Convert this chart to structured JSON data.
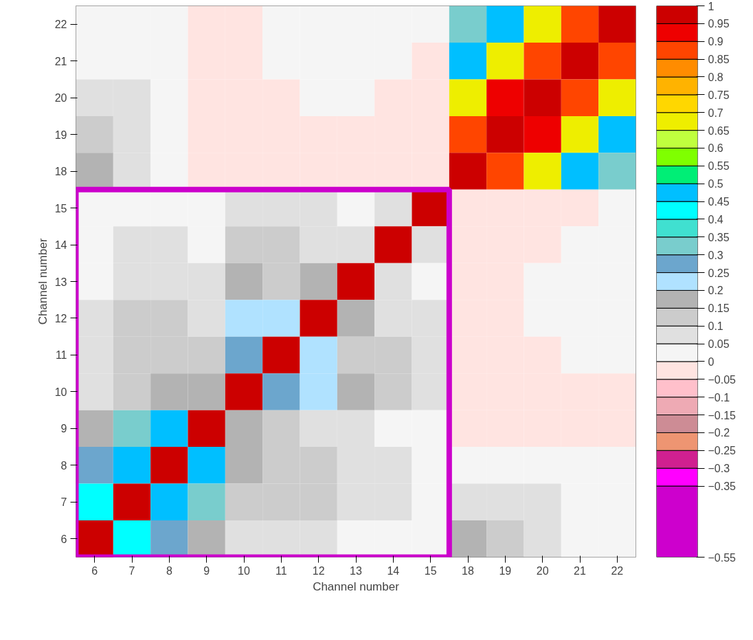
{
  "chart_data": {
    "type": "heatmap",
    "xlabel": "Channel number",
    "ylabel": "Channel number",
    "categories": [
      "6",
      "7",
      "8",
      "9",
      "10",
      "11",
      "12",
      "13",
      "14",
      "15",
      "18",
      "19",
      "20",
      "21",
      "22"
    ],
    "y_categories": [
      "22",
      "21",
      "20",
      "19",
      "18",
      "15",
      "14",
      "13",
      "12",
      "11",
      "10",
      "9",
      "8",
      "7",
      "6"
    ],
    "cells": [
      [
        0.025,
        0.025,
        0.025,
        -0.025,
        -0.025,
        0.025,
        0.025,
        0.025,
        0.025,
        0.025,
        0.325,
        0.475,
        0.675,
        0.875,
        0.975
      ],
      [
        0.025,
        0.025,
        0.025,
        -0.025,
        -0.025,
        0.025,
        0.025,
        0.025,
        0.025,
        -0.025,
        0.475,
        0.675,
        0.875,
        0.975,
        0.875
      ],
      [
        0.075,
        0.075,
        0.025,
        -0.025,
        -0.025,
        -0.025,
        0.025,
        0.025,
        -0.025,
        -0.025,
        0.675,
        0.925,
        0.975,
        0.875,
        0.675
      ],
      [
        0.125,
        0.075,
        0.025,
        -0.025,
        -0.025,
        -0.025,
        -0.025,
        -0.025,
        -0.025,
        -0.025,
        0.875,
        0.975,
        0.925,
        0.675,
        0.475
      ],
      [
        0.175,
        0.075,
        0.025,
        -0.025,
        -0.025,
        -0.025,
        -0.025,
        -0.025,
        -0.025,
        -0.025,
        0.975,
        0.875,
        0.675,
        0.475,
        0.325
      ],
      [
        0.025,
        0.025,
        0.025,
        0.025,
        0.075,
        0.075,
        0.075,
        0.025,
        0.075,
        0.975,
        -0.025,
        -0.025,
        -0.025,
        -0.025,
        0.025
      ],
      [
        0.025,
        0.075,
        0.075,
        0.025,
        0.125,
        0.125,
        0.075,
        0.075,
        0.975,
        0.075,
        -0.025,
        -0.025,
        -0.025,
        0.025,
        0.025
      ],
      [
        0.025,
        0.075,
        0.075,
        0.075,
        0.175,
        0.125,
        0.175,
        0.975,
        0.075,
        0.025,
        -0.025,
        -0.025,
        0.025,
        0.025,
        0.025
      ],
      [
        0.075,
        0.125,
        0.125,
        0.075,
        0.225,
        0.225,
        0.975,
        0.175,
        0.075,
        0.075,
        -0.025,
        -0.025,
        0.025,
        0.025,
        0.025
      ],
      [
        0.075,
        0.125,
        0.125,
        0.125,
        0.275,
        0.975,
        0.225,
        0.125,
        0.125,
        0.075,
        -0.025,
        -0.025,
        -0.025,
        0.025,
        0.025
      ],
      [
        0.075,
        0.125,
        0.175,
        0.175,
        0.975,
        0.275,
        0.225,
        0.175,
        0.125,
        0.075,
        -0.025,
        -0.025,
        -0.025,
        -0.025,
        -0.025
      ],
      [
        0.175,
        0.325,
        0.475,
        0.975,
        0.175,
        0.125,
        0.075,
        0.075,
        0.025,
        0.025,
        -0.025,
        -0.025,
        -0.025,
        -0.025,
        -0.025
      ],
      [
        0.275,
        0.475,
        0.975,
        0.475,
        0.175,
        0.125,
        0.125,
        0.075,
        0.075,
        0.025,
        0.025,
        0.025,
        0.025,
        0.025,
        0.025
      ],
      [
        0.425,
        0.975,
        0.475,
        0.325,
        0.125,
        0.125,
        0.125,
        0.075,
        0.075,
        0.025,
        0.075,
        0.075,
        0.075,
        0.025,
        0.025
      ],
      [
        0.975,
        0.425,
        0.275,
        0.175,
        0.075,
        0.075,
        0.075,
        0.025,
        0.025,
        0.025,
        0.175,
        0.125,
        0.075,
        0.025,
        0.025
      ]
    ],
    "clim": [
      -0.55,
      1
    ],
    "cticks": [
      -0.55,
      -0.35,
      -0.3,
      -0.25,
      -0.2,
      -0.15,
      -0.1,
      -0.05,
      0,
      0.05,
      0.1,
      0.15,
      0.2,
      0.25,
      0.3,
      0.35,
      0.4,
      0.45,
      0.5,
      0.55,
      0.6,
      0.65,
      0.7,
      0.75,
      0.8,
      0.85,
      0.9,
      0.95,
      1
    ],
    "colors": [
      "#cd00cd",
      "#ff00ff",
      "#d02090",
      "#ee9572",
      "#cd8c95",
      "#eeaab4",
      "#ffc0cb",
      "#ffe4e1",
      "#f5f5f5",
      "#e0e0e0",
      "#cccccc",
      "#b3b3b3",
      "#b0e2ff",
      "#6ca6cd",
      "#79cdcd",
      "#40e0d0",
      "#00ffff",
      "#00bfff",
      "#00ee76",
      "#7fff00",
      "#c0ff3e",
      "#eeee00",
      "#ffd700",
      "#ffb300",
      "#ff8c00",
      "#ff4500",
      "#ee0000",
      "#cc0000"
    ]
  }
}
